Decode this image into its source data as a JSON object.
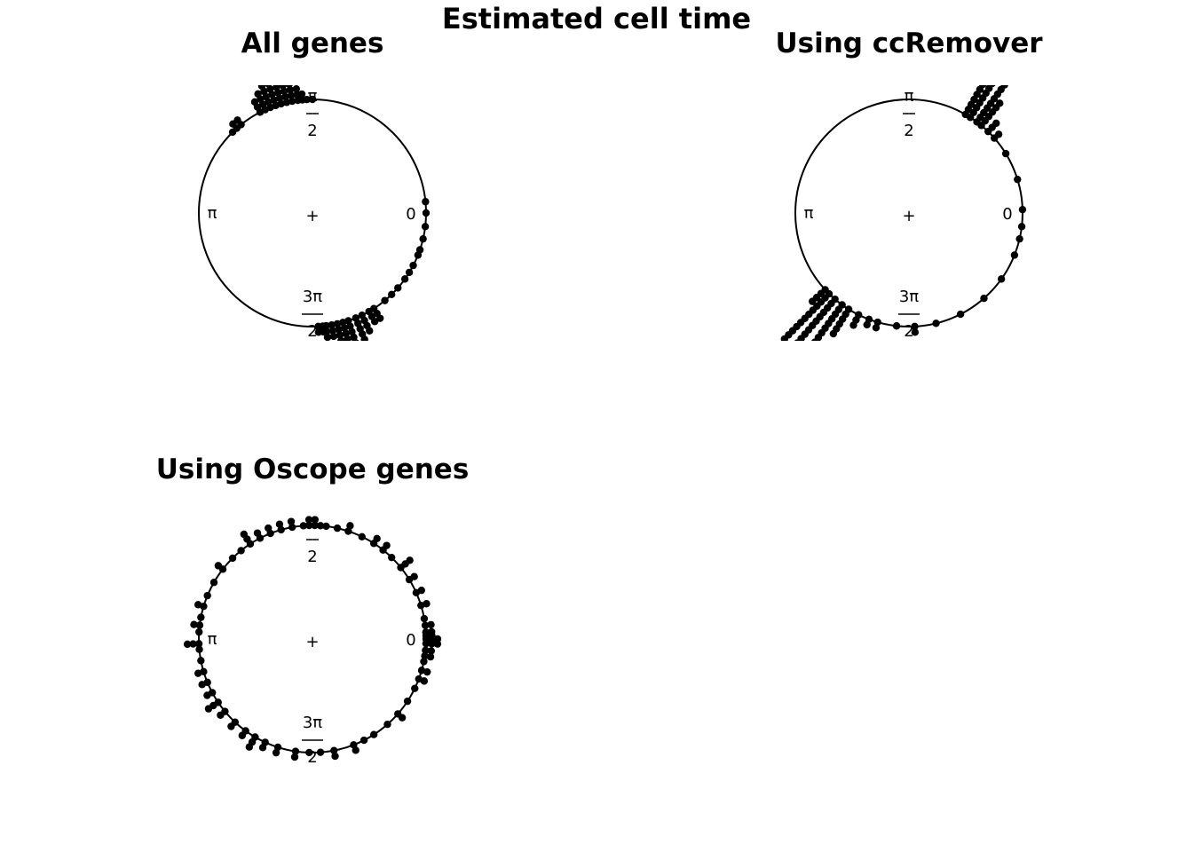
{
  "figure_title": "Estimated cell time",
  "chart_data": [
    {
      "type": "scatter",
      "coordinate_system": "circular",
      "title": "All genes",
      "angle_labels": {
        "zero": "0",
        "half_pi": "π\n2",
        "pi": "π",
        "three_half_pi": "3π\n2"
      },
      "center_marker": "+",
      "stacked": true,
      "angles": [
        0.1,
        0.0,
        -0.12,
        -0.23,
        -0.33,
        -0.38,
        -0.48,
        -0.55,
        -0.62,
        -0.72,
        -0.8,
        -0.88,
        -1.0,
        -1.05,
        -1.12,
        -1.18,
        -1.25,
        -1.3,
        -1.35,
        -1.4,
        -1.45,
        -1.48,
        -1.52,
        1.57,
        1.62,
        1.66,
        1.7,
        1.75,
        1.8,
        1.85,
        1.9,
        1.95,
        2.0,
        2.05,
        2.25,
        2.3,
        2.35
      ],
      "stack_counts": [
        1,
        1,
        1,
        1,
        1,
        1,
        1,
        1,
        1,
        1,
        1,
        1,
        3,
        3,
        4,
        5,
        5,
        4,
        4,
        3,
        3,
        2,
        2,
        1,
        1,
        2,
        3,
        5,
        6,
        6,
        5,
        5,
        4,
        3,
        2,
        2,
        1
      ]
    },
    {
      "type": "scatter",
      "coordinate_system": "circular",
      "title": "Using ccRemover",
      "angle_labels": {
        "zero": "0",
        "half_pi": "π\n2",
        "pi": "π",
        "three_half_pi": "3π\n2"
      },
      "center_marker": "+",
      "stacked": true,
      "angles": [
        0.03,
        -0.12,
        -0.23,
        -0.38,
        -0.62,
        -0.85,
        -1.1,
        -1.33,
        -1.52,
        -1.68,
        -1.85,
        -1.93,
        -2.03,
        -2.13,
        -2.2,
        -2.28,
        -2.35,
        -2.4,
        0.3,
        0.55,
        0.72,
        0.8,
        0.88,
        0.93,
        1.0,
        1.05
      ],
      "stack_counts": [
        1,
        1,
        1,
        1,
        1,
        1,
        1,
        1,
        2,
        1,
        2,
        2,
        3,
        6,
        9,
        12,
        12,
        4,
        1,
        1,
        2,
        3,
        6,
        12,
        12,
        10
      ]
    },
    {
      "type": "scatter",
      "coordinate_system": "circular",
      "title": "Using Oscope genes",
      "angle_labels": {
        "zero": "0",
        "half_pi": "π\n2",
        "pi": "π",
        "three_half_pi": "3π\n2"
      },
      "center_marker": "+",
      "stacked": true,
      "angles": [
        0.0,
        0.03,
        0.06,
        -0.04,
        -0.1,
        -0.15,
        -0.2,
        -0.28,
        -0.36,
        -0.45,
        -0.58,
        -0.72,
        -0.85,
        -1.0,
        -1.1,
        -1.2,
        -1.38,
        -1.5,
        -1.6,
        -1.72,
        -1.88,
        -2.0,
        -2.1,
        -2.2,
        -2.32,
        -2.45,
        -2.55,
        -2.65,
        -2.75,
        -2.85,
        -2.95,
        -3.05,
        -3.1,
        3.08,
        3.02,
        2.95,
        2.85,
        2.75,
        2.62,
        2.48,
        2.35,
        2.25,
        2.15,
        2.05,
        1.95,
        1.85,
        1.75,
        1.65,
        1.6,
        1.55,
        1.5,
        1.45,
        1.35,
        1.25,
        1.12,
        1.0,
        0.9,
        0.8,
        0.68,
        0.55,
        0.42,
        0.3,
        0.18,
        0.12
      ],
      "stack_counts": [
        3,
        2,
        2,
        3,
        2,
        2,
        1,
        2,
        2,
        1,
        1,
        2,
        1,
        1,
        1,
        2,
        2,
        1,
        1,
        2,
        2,
        2,
        3,
        2,
        2,
        2,
        3,
        2,
        2,
        2,
        1,
        1,
        3,
        1,
        2,
        1,
        2,
        1,
        1,
        2,
        1,
        1,
        3,
        2,
        2,
        2,
        2,
        1,
        2,
        2,
        1,
        1,
        1,
        2,
        1,
        2,
        2,
        1,
        3,
        2,
        2,
        2,
        1,
        2
      ]
    }
  ]
}
